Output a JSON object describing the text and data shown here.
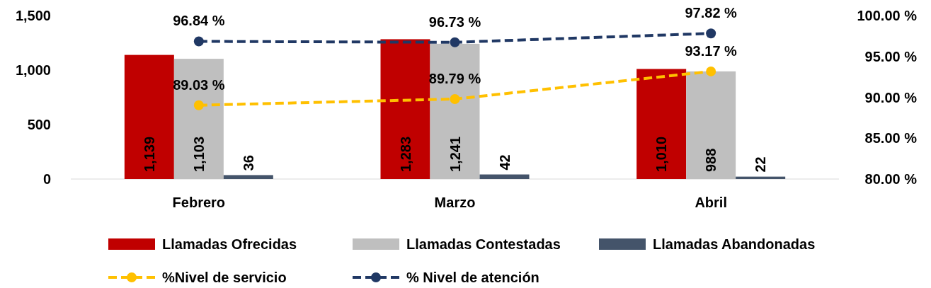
{
  "chart_data": {
    "type": "bar",
    "categories": [
      "Febrero",
      "Marzo",
      "Abril"
    ],
    "series": [
      {
        "name": "Llamadas Ofrecidas",
        "color": "#c00000",
        "values": [
          1139,
          1283,
          1010
        ],
        "value_labels": [
          "1,139",
          "1,283",
          "1,010"
        ]
      },
      {
        "name": "Llamadas Contestadas",
        "color": "#bfbfbf",
        "values": [
          1103,
          1241,
          988
        ],
        "value_labels": [
          "1,103",
          "1,241",
          "988"
        ]
      },
      {
        "name": "Llamadas Abandonadas",
        "color": "#44546a",
        "values": [
          36,
          42,
          22
        ],
        "value_labels": [
          "36",
          "42",
          "22"
        ]
      },
      {
        "name": "%Nivel de servicio",
        "type": "line",
        "axis": "y2",
        "color": "#ffc000",
        "values": [
          89.03,
          89.79,
          93.17
        ],
        "value_labels": [
          "89.03 %",
          "89.79 %",
          "93.17 %"
        ]
      },
      {
        "name": "% Nivel de atención",
        "type": "line",
        "axis": "y2",
        "color": "#203864",
        "values": [
          96.84,
          96.73,
          97.82
        ],
        "value_labels": [
          "96.84 %",
          "96.73 %",
          "97.82 %"
        ]
      }
    ],
    "ylim": [
      0,
      1500
    ],
    "yticks": [
      0,
      500,
      {
        "value": 1000,
        "label": "1,000"
      },
      {
        "value": 1500,
        "label": "1,500"
      }
    ],
    "y2lim": [
      80,
      100
    ],
    "y2ticks": [
      {
        "value": 80,
        "label": "80.00 %"
      },
      {
        "value": 85,
        "label": "85.00 %"
      },
      {
        "value": 90,
        "label": "90.00 %"
      },
      {
        "value": 95,
        "label": "95.00 %"
      },
      {
        "value": 100,
        "label": "100.00 %"
      }
    ],
    "marker": "circle",
    "line_style": "dashed",
    "grid": false,
    "legend": "bottom"
  }
}
